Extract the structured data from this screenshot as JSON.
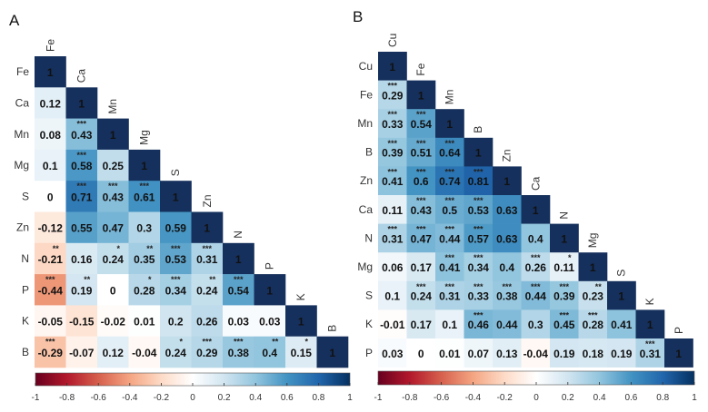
{
  "colors": {
    "neg": "#67001f",
    "mid": "#ffffff",
    "pos": "#053061",
    "diag": "#15305c"
  },
  "chart_data": [
    {
      "type": "heatmap",
      "title": "A",
      "labels": [
        "Fe",
        "Ca",
        "Mn",
        "Mg",
        "S",
        "Zn",
        "N",
        "P",
        "K",
        "B"
      ],
      "values": [
        [
          1
        ],
        [
          0.12,
          1
        ],
        [
          0.08,
          0.43,
          1
        ],
        [
          0.1,
          0.58,
          0.25,
          1
        ],
        [
          0,
          0.71,
          0.43,
          0.61,
          1
        ],
        [
          -0.12,
          0.55,
          0.47,
          0.3,
          0.59,
          1
        ],
        [
          -0.21,
          0.16,
          0.24,
          0.35,
          0.53,
          0.31,
          1
        ],
        [
          -0.44,
          0.19,
          0,
          0.28,
          0.34,
          0.24,
          0.54,
          1
        ],
        [
          -0.05,
          -0.15,
          -0.02,
          0.01,
          0.2,
          0.26,
          0.03,
          0.03,
          1
        ],
        [
          -0.29,
          -0.07,
          0.12,
          -0.04,
          0.24,
          0.29,
          0.38,
          0.4,
          0.15,
          1
        ]
      ],
      "stars": [
        [
          ""
        ],
        [
          "",
          ""
        ],
        [
          "",
          "***",
          ""
        ],
        [
          "",
          "***",
          "",
          ""
        ],
        [
          "",
          "***",
          "***",
          "***",
          ""
        ],
        [
          "",
          "",
          "",
          "",
          "",
          ""
        ],
        [
          "**",
          "",
          "*",
          "**",
          "***",
          "***",
          ""
        ],
        [
          "***",
          "**",
          "",
          "*",
          "***",
          "**",
          "***",
          ""
        ],
        [
          "",
          "",
          "",
          "",
          "",
          "",
          "",
          "",
          ""
        ],
        [
          "***",
          "",
          "",
          "",
          "*",
          "***",
          "***",
          "**",
          "*",
          ""
        ]
      ],
      "colorbar": {
        "range": [
          -1,
          1
        ],
        "ticks": [
          "-1",
          "-0.8",
          "-0.6",
          "-0.4",
          "-0.2",
          "0",
          "0.2",
          "0.4",
          "0.6",
          "0.8",
          "1"
        ]
      }
    },
    {
      "type": "heatmap",
      "title": "B",
      "labels": [
        "Cu",
        "Fe",
        "Mn",
        "B",
        "Zn",
        "Ca",
        "N",
        "Mg",
        "S",
        "K",
        "P"
      ],
      "values": [
        [
          1
        ],
        [
          0.29,
          1
        ],
        [
          0.33,
          0.54,
          1
        ],
        [
          0.39,
          0.51,
          0.64,
          1
        ],
        [
          0.41,
          0.6,
          0.74,
          0.81,
          1
        ],
        [
          0.11,
          0.43,
          0.5,
          0.53,
          0.63,
          1
        ],
        [
          0.31,
          0.47,
          0.44,
          0.57,
          0.63,
          0.4,
          1
        ],
        [
          0.06,
          0.17,
          0.41,
          0.34,
          0.4,
          0.26,
          0.11,
          1
        ],
        [
          0.1,
          0.24,
          0.31,
          0.33,
          0.38,
          0.44,
          0.39,
          0.23,
          1
        ],
        [
          -0.01,
          0.17,
          0.1,
          0.46,
          0.44,
          0.3,
          0.45,
          0.28,
          0.41,
          1
        ],
        [
          0.03,
          0,
          0.01,
          0.07,
          0.13,
          -0.04,
          0.19,
          0.18,
          0.19,
          0.31,
          1
        ]
      ],
      "stars": [
        [
          ""
        ],
        [
          "***",
          ""
        ],
        [
          "***",
          "***",
          ""
        ],
        [
          "***",
          "***",
          "***",
          ""
        ],
        [
          "***",
          "***",
          "***",
          "***",
          ""
        ],
        [
          "",
          "***",
          "***",
          "***",
          "",
          ""
        ],
        [
          "***",
          "***",
          "***",
          "***",
          "",
          "",
          ""
        ],
        [
          "",
          "",
          "***",
          "***",
          "",
          "***",
          "*",
          ""
        ],
        [
          "",
          "***",
          "***",
          "***",
          "***",
          "***",
          "***",
          "**",
          ""
        ],
        [
          "",
          "",
          "",
          "***",
          "",
          "",
          "***",
          "***",
          "",
          ""
        ],
        [
          "",
          "",
          "",
          "",
          "",
          "",
          "",
          "",
          "",
          "***",
          ""
        ]
      ],
      "colorbar": {
        "range": [
          -1,
          1
        ],
        "ticks": [
          "-1",
          "-0.8",
          "-0.6",
          "-0.4",
          "-0.2",
          "0",
          "0.2",
          "0.4",
          "0.6",
          "0.8",
          "1"
        ]
      }
    }
  ]
}
